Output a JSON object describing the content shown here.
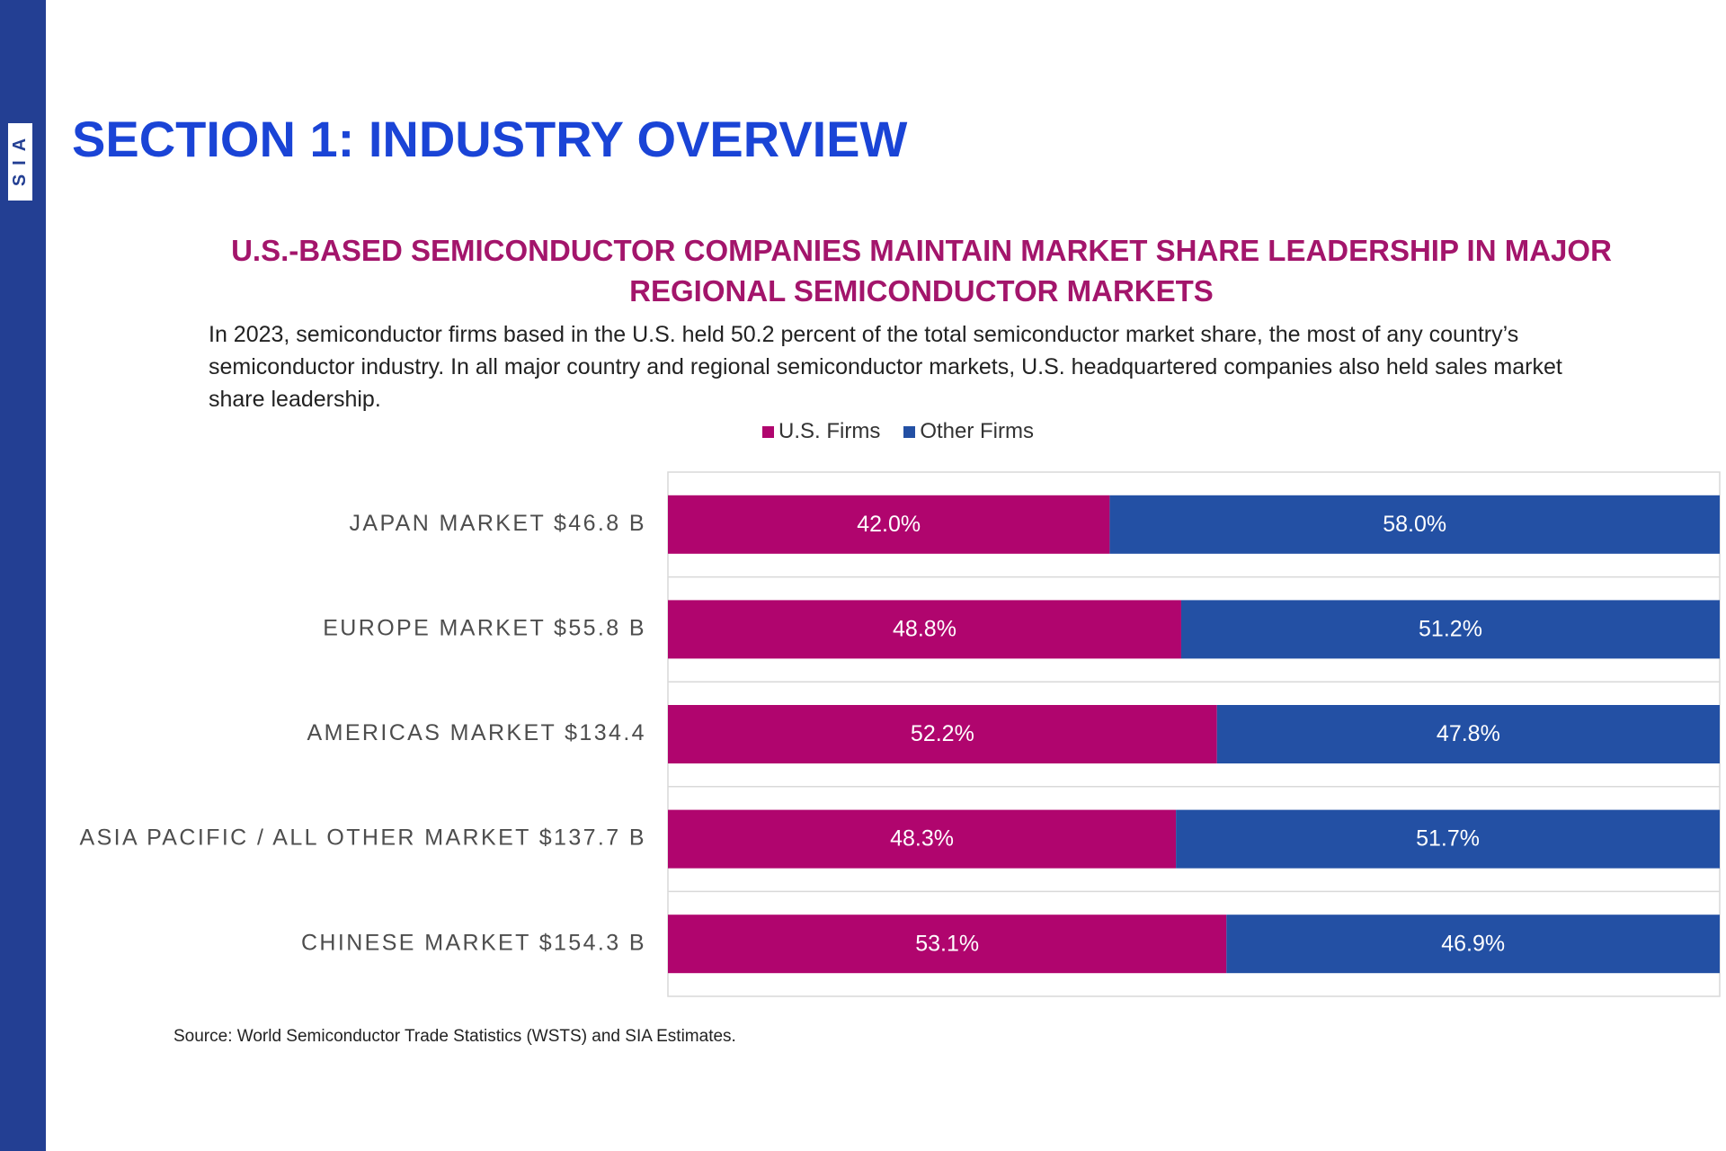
{
  "sidebar": {
    "logo_text": "SIA"
  },
  "header": {
    "section_title": "SECTION 1: INDUSTRY OVERVIEW"
  },
  "subtitle": "U.S.-BASED SEMICONDUCTOR COMPANIES MAINTAIN MARKET SHARE LEADERSHIP IN MAJOR REGIONAL SEMICONDUCTOR MARKETS",
  "intro": "In 2023, semiconductor firms based in the U.S. held 50.2 percent of the total semiconductor market share, the most of any country’s semiconductor industry. In all major country and regional semiconductor markets, U.S. headquartered companies also held sales market share leadership.",
  "colors": {
    "us_firms": "#b0056e",
    "other_firms": "#2350a4",
    "sidebar": "#233f93",
    "title": "#1a44d6",
    "subtitle": "#a3156b"
  },
  "chart_data": {
    "type": "bar",
    "orientation": "horizontal",
    "stacked": true,
    "percent_stacked": true,
    "legend_position": "top",
    "xlim": [
      0,
      100
    ],
    "categories": [
      "JAPAN MARKET $46.8 B",
      "EUROPE MARKET $55.8 B",
      "AMERICAS MARKET $134.4",
      "ASIA PACIFIC / ALL OTHER MARKET $137.7 B",
      "CHINESE MARKET $154.3 B"
    ],
    "series": [
      {
        "name": "U.S. Firms",
        "values": [
          42.0,
          48.8,
          52.2,
          48.3,
          53.1
        ],
        "labels": [
          "42.0%",
          "48.8%",
          "52.2%",
          "48.3%",
          "53.1%"
        ]
      },
      {
        "name": "Other Firms",
        "values": [
          58.0,
          51.2,
          47.8,
          51.7,
          46.9
        ],
        "labels": [
          "58.0%",
          "51.2%",
          "47.8%",
          "51.7%",
          "46.9%"
        ]
      }
    ]
  },
  "source": "Source: World Semiconductor Trade Statistics (WSTS) and SIA Estimates."
}
